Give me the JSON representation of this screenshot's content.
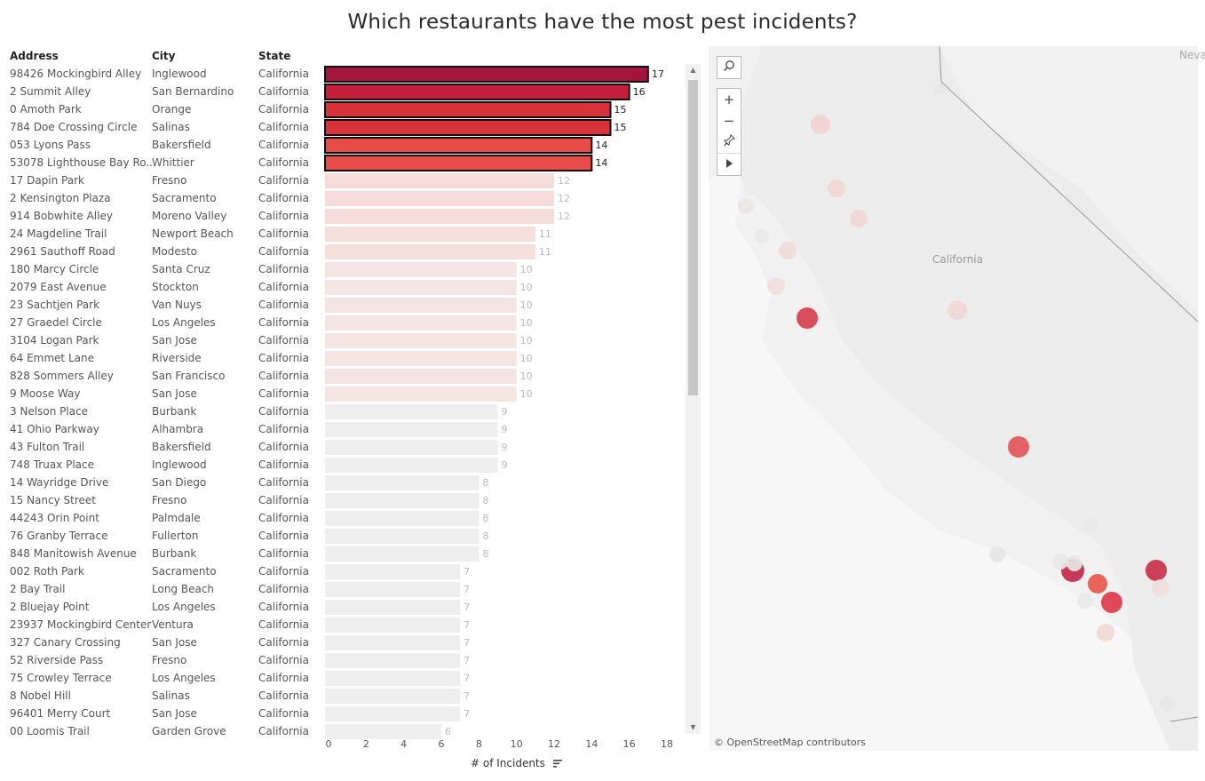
{
  "title": "Which restaurants have the most pest incidents?",
  "columns": {
    "address": "Address",
    "city": "City",
    "state": "State"
  },
  "chart_data": {
    "type": "bar",
    "orientation": "horizontal",
    "xlabel": "# of Incidents",
    "xlim": [
      0,
      18
    ],
    "xticks": [
      0,
      2,
      4,
      6,
      8,
      10,
      12,
      14,
      16,
      18
    ],
    "rows": [
      {
        "address": "98426 Mockingbird Alley",
        "city": "Inglewood",
        "state": "California",
        "value": 17
      },
      {
        "address": "2 Summit Alley",
        "city": "San Bernardino",
        "state": "California",
        "value": 16
      },
      {
        "address": "0 Amoth Park",
        "city": "Orange",
        "state": "California",
        "value": 15
      },
      {
        "address": "784 Doe Crossing Circle",
        "city": "Salinas",
        "state": "California",
        "value": 15
      },
      {
        "address": "053 Lyons Pass",
        "city": "Bakersfield",
        "state": "California",
        "value": 14
      },
      {
        "address": "53078 Lighthouse Bay Ro..",
        "city": "Whittier",
        "state": "California",
        "value": 14
      },
      {
        "address": "17 Dapin Park",
        "city": "Fresno",
        "state": "California",
        "value": 12
      },
      {
        "address": "2 Kensington Plaza",
        "city": "Sacramento",
        "state": "California",
        "value": 12
      },
      {
        "address": "914 Bobwhite Alley",
        "city": "Moreno Valley",
        "state": "California",
        "value": 12
      },
      {
        "address": "24 Magdeline Trail",
        "city": "Newport Beach",
        "state": "California",
        "value": 11
      },
      {
        "address": "2961 Sauthoff Road",
        "city": "Modesto",
        "state": "California",
        "value": 11
      },
      {
        "address": "180 Marcy Circle",
        "city": "Santa Cruz",
        "state": "California",
        "value": 10
      },
      {
        "address": "2079 East Avenue",
        "city": "Stockton",
        "state": "California",
        "value": 10
      },
      {
        "address": "23 Sachtjen Park",
        "city": "Van Nuys",
        "state": "California",
        "value": 10
      },
      {
        "address": "27 Graedel Circle",
        "city": "Los Angeles",
        "state": "California",
        "value": 10
      },
      {
        "address": "3104 Logan Park",
        "city": "San Jose",
        "state": "California",
        "value": 10
      },
      {
        "address": "64 Emmet Lane",
        "city": "Riverside",
        "state": "California",
        "value": 10
      },
      {
        "address": "828 Sommers Alley",
        "city": "San Francisco",
        "state": "California",
        "value": 10
      },
      {
        "address": "9 Moose Way",
        "city": "San Jose",
        "state": "California",
        "value": 10
      },
      {
        "address": "3 Nelson Place",
        "city": "Burbank",
        "state": "California",
        "value": 9
      },
      {
        "address": "41 Ohio Parkway",
        "city": "Alhambra",
        "state": "California",
        "value": 9
      },
      {
        "address": "43 Fulton Trail",
        "city": "Bakersfield",
        "state": "California",
        "value": 9
      },
      {
        "address": "748 Truax Place",
        "city": "Inglewood",
        "state": "California",
        "value": 9
      },
      {
        "address": "14 Wayridge Drive",
        "city": "San Diego",
        "state": "California",
        "value": 8
      },
      {
        "address": "15 Nancy Street",
        "city": "Fresno",
        "state": "California",
        "value": 8
      },
      {
        "address": "44243 Orin Point",
        "city": "Palmdale",
        "state": "California",
        "value": 8
      },
      {
        "address": "76 Granby Terrace",
        "city": "Fullerton",
        "state": "California",
        "value": 8
      },
      {
        "address": "848 Manitowish Avenue",
        "city": "Burbank",
        "state": "California",
        "value": 8
      },
      {
        "address": "002 Roth Park",
        "city": "Sacramento",
        "state": "California",
        "value": 7
      },
      {
        "address": "2 Bay Trail",
        "city": "Long Beach",
        "state": "California",
        "value": 7
      },
      {
        "address": "2 Bluejay Point",
        "city": "Los Angeles",
        "state": "California",
        "value": 7
      },
      {
        "address": "23937 Mockingbird Center",
        "city": "Ventura",
        "state": "California",
        "value": 7
      },
      {
        "address": "327 Canary Crossing",
        "city": "San Jose",
        "state": "California",
        "value": 7
      },
      {
        "address": "52 Riverside Pass",
        "city": "Fresno",
        "state": "California",
        "value": 7
      },
      {
        "address": "75 Crowley Terrace",
        "city": "Los Angeles",
        "state": "California",
        "value": 7
      },
      {
        "address": "8 Nobel Hill",
        "city": "Salinas",
        "state": "California",
        "value": 7
      },
      {
        "address": "96401 Merry Court",
        "city": "San Jose",
        "state": "California",
        "value": 7
      },
      {
        "address": "00 Loomis Trail",
        "city": "Garden Grove",
        "state": "California",
        "value": 6
      }
    ],
    "highlight_top_n": 6,
    "colors": {
      "17": "#a5143c",
      "16": "#c41e3a",
      "15": "#d8323a",
      "14": "#e84c48",
      "12": "#f5dcda",
      "11": "#f5dfdd",
      "10": "#f4e4e3",
      "low": "#eeeeee",
      "outline": "#111111"
    }
  },
  "map": {
    "labels": [
      "California",
      "Neva"
    ],
    "attribution": "© OpenStreetMap contributors",
    "controls": [
      "search-icon",
      "zoom-in-icon",
      "zoom-out-icon",
      "pin-icon",
      "play-icon"
    ]
  }
}
